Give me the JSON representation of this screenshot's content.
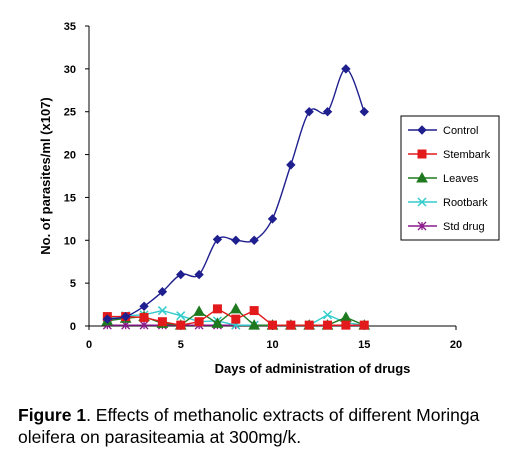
{
  "caption": {
    "label": "Figure 1",
    "text": ". Effects of methanolic extracts of different Moringa oleifera on parasiteamia at 300mg/k."
  },
  "chart_data": {
    "type": "line",
    "xlabel": "Days of administration of drugs",
    "ylabel": "No. of parasites/ml (x107)",
    "xlim": [
      0,
      20
    ],
    "ylim": [
      0,
      35
    ],
    "xticks": [
      0,
      5,
      10,
      15,
      20
    ],
    "yticks": [
      0,
      5,
      10,
      15,
      20,
      25,
      30,
      35
    ],
    "grid": false,
    "legend_position": "right",
    "series": [
      {
        "name": "Control",
        "color": "#1f1f8f",
        "marker": "diamond",
        "smooth": true,
        "x": [
          1,
          2,
          3,
          4,
          5,
          6,
          7,
          8,
          9,
          10,
          11,
          12,
          13,
          14,
          15
        ],
        "y": [
          0.8,
          1.1,
          2.3,
          4.0,
          6.0,
          6.0,
          10.1,
          10.0,
          10.0,
          12.5,
          18.8,
          25.0,
          25.0,
          30.0,
          25.0
        ]
      },
      {
        "name": "Stembark",
        "color": "#e31a1c",
        "marker": "square",
        "smooth": false,
        "x": [
          1,
          2,
          3,
          4,
          5,
          6,
          7,
          8,
          9,
          10,
          11,
          12,
          13,
          14,
          15
        ],
        "y": [
          1.1,
          1.1,
          1.0,
          0.5,
          0.1,
          0.5,
          2.0,
          0.8,
          1.8,
          0.1,
          0.1,
          0.1,
          0.1,
          0.1,
          0.1
        ]
      },
      {
        "name": "Leaves",
        "color": "#1f7a1f",
        "marker": "triangle",
        "smooth": false,
        "x": [
          1,
          2,
          3,
          4,
          5,
          6,
          7,
          8,
          9,
          10,
          11,
          12,
          13,
          14,
          15
        ],
        "y": [
          0.6,
          0.9,
          1.1,
          0.3,
          0.1,
          1.7,
          0.3,
          2.0,
          0.1,
          0.1,
          0.1,
          0.1,
          0.1,
          1.0,
          0.1
        ]
      },
      {
        "name": "Rootbark",
        "color": "#33cccc",
        "marker": "x",
        "smooth": false,
        "x": [
          1,
          2,
          3,
          4,
          5,
          6,
          7,
          8,
          9,
          10,
          11,
          12,
          13,
          14,
          15
        ],
        "y": [
          0.9,
          1.2,
          1.3,
          1.8,
          1.2,
          0.5,
          0.6,
          0.1,
          0.1,
          0.1,
          0.1,
          0.1,
          1.3,
          0.4,
          0.1
        ]
      },
      {
        "name": "Std drug",
        "color": "#8b1a8b",
        "marker": "star",
        "smooth": false,
        "x": [
          1,
          2,
          3,
          4,
          5,
          6,
          7,
          8,
          9,
          10,
          11,
          12,
          13,
          14,
          15
        ],
        "y": [
          0.1,
          0.1,
          0.1,
          0.1,
          0.1,
          0.1,
          0.1,
          0.1,
          0.1,
          0.1,
          0.1,
          0.1,
          0.1,
          0.1,
          0.1
        ]
      }
    ]
  }
}
